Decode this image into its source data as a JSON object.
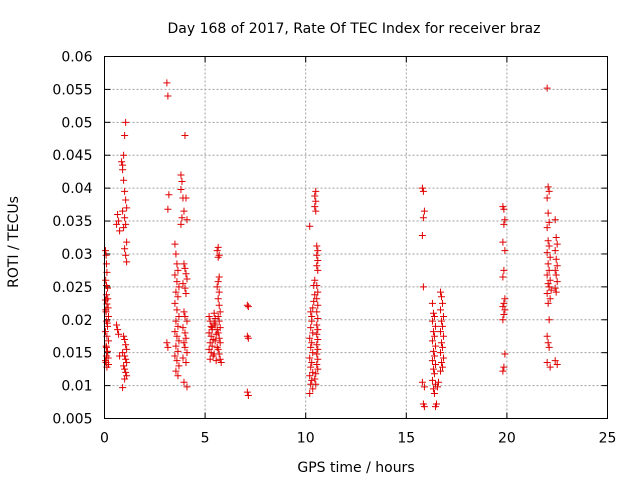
{
  "chart_data": {
    "type": "scatter",
    "title": "Day 168 of 2017, Rate Of TEC Index for receiver braz",
    "xlabel": "GPS time / hours",
    "ylabel": "ROTI / TECUs",
    "xlim": [
      0,
      25
    ],
    "ylim": [
      0.005,
      0.06
    ],
    "x_ticks": [
      0,
      5,
      10,
      15,
      20,
      25
    ],
    "x_tick_labels": [
      "0",
      "5",
      "10",
      "15",
      "20",
      "25"
    ],
    "y_ticks": [
      0.005,
      0.01,
      0.015,
      0.02,
      0.025,
      0.03,
      0.035,
      0.04,
      0.045,
      0.05,
      0.055,
      0.06
    ],
    "y_tick_labels": [
      "0.005",
      "0.01",
      "0.015",
      "0.02",
      "0.025",
      "0.03",
      "0.035",
      "0.04",
      "0.045",
      "0.05",
      "0.055",
      "0.06"
    ],
    "grid": true,
    "marker": "+",
    "color": "#e00000",
    "points": [
      [
        0.05,
        0.0305
      ],
      [
        0.08,
        0.0298
      ],
      [
        0.1,
        0.0285
      ],
      [
        0.12,
        0.0272
      ],
      [
        0.06,
        0.026
      ],
      [
        0.15,
        0.0248
      ],
      [
        0.1,
        0.0238
      ],
      [
        0.05,
        0.023
      ],
      [
        0.12,
        0.0224
      ],
      [
        0.18,
        0.0218
      ],
      [
        0.08,
        0.0212
      ],
      [
        0.2,
        0.0205
      ],
      [
        0.1,
        0.0198
      ],
      [
        0.15,
        0.019
      ],
      [
        0.05,
        0.0182
      ],
      [
        0.12,
        0.0175
      ],
      [
        0.2,
        0.0168
      ],
      [
        0.08,
        0.016
      ],
      [
        0.15,
        0.0152
      ],
      [
        0.1,
        0.0145
      ],
      [
        0.05,
        0.0138
      ],
      [
        0.2,
        0.0132
      ],
      [
        0.12,
        0.0128
      ],
      [
        0.08,
        0.0135
      ],
      [
        0.18,
        0.0142
      ],
      [
        0.1,
        0.0158
      ],
      [
        0.14,
        0.0195
      ],
      [
        0.06,
        0.0215
      ],
      [
        0.16,
        0.0232
      ],
      [
        0.1,
        0.0252
      ],
      [
        0.6,
        0.0345
      ],
      [
        0.65,
        0.036
      ],
      [
        0.7,
        0.035
      ],
      [
        0.75,
        0.0335
      ],
      [
        0.6,
        0.0192
      ],
      [
        0.65,
        0.0185
      ],
      [
        0.7,
        0.0178
      ],
      [
        0.75,
        0.0145
      ],
      [
        0.85,
        0.044
      ],
      [
        0.9,
        0.0435
      ],
      [
        0.95,
        0.045
      ],
      [
        1.0,
        0.048
      ],
      [
        1.05,
        0.05
      ],
      [
        0.9,
        0.0428
      ],
      [
        0.95,
        0.0412
      ],
      [
        1.0,
        0.0395
      ],
      [
        1.05,
        0.0382
      ],
      [
        1.1,
        0.037
      ],
      [
        0.9,
        0.0365
      ],
      [
        1.0,
        0.0355
      ],
      [
        1.05,
        0.0345
      ],
      [
        0.95,
        0.034
      ],
      [
        1.1,
        0.0318
      ],
      [
        1.0,
        0.0308
      ],
      [
        1.05,
        0.0298
      ],
      [
        1.1,
        0.0288
      ],
      [
        0.95,
        0.0175
      ],
      [
        1.0,
        0.017
      ],
      [
        1.05,
        0.0162
      ],
      [
        1.1,
        0.0155
      ],
      [
        0.9,
        0.015
      ],
      [
        1.0,
        0.0145
      ],
      [
        1.05,
        0.014
      ],
      [
        1.1,
        0.0135
      ],
      [
        0.95,
        0.013
      ],
      [
        1.0,
        0.0125
      ],
      [
        1.05,
        0.012
      ],
      [
        1.1,
        0.0115
      ],
      [
        0.9,
        0.0097
      ],
      [
        1.0,
        0.011
      ],
      [
        3.1,
        0.056
      ],
      [
        3.15,
        0.054
      ],
      [
        3.2,
        0.039
      ],
      [
        3.15,
        0.0368
      ],
      [
        3.1,
        0.0165
      ],
      [
        3.15,
        0.0158
      ],
      [
        3.5,
        0.0315
      ],
      [
        3.55,
        0.03
      ],
      [
        3.6,
        0.0285
      ],
      [
        3.65,
        0.0275
      ],
      [
        3.5,
        0.0268
      ],
      [
        3.6,
        0.0258
      ],
      [
        3.7,
        0.025
      ],
      [
        3.55,
        0.0242
      ],
      [
        3.65,
        0.0235
      ],
      [
        3.5,
        0.0225
      ],
      [
        3.6,
        0.0215
      ],
      [
        3.7,
        0.0205
      ],
      [
        3.55,
        0.0198
      ],
      [
        3.65,
        0.019
      ],
      [
        3.5,
        0.0182
      ],
      [
        3.6,
        0.0175
      ],
      [
        3.7,
        0.0168
      ],
      [
        3.55,
        0.016
      ],
      [
        3.65,
        0.0152
      ],
      [
        3.5,
        0.0145
      ],
      [
        3.6,
        0.0138
      ],
      [
        3.7,
        0.013
      ],
      [
        3.55,
        0.0122
      ],
      [
        3.65,
        0.0115
      ],
      [
        3.8,
        0.042
      ],
      [
        3.85,
        0.041
      ],
      [
        3.8,
        0.0398
      ],
      [
        3.9,
        0.0385
      ],
      [
        3.95,
        0.0365
      ],
      [
        3.85,
        0.0355
      ],
      [
        3.8,
        0.0345
      ],
      [
        4.0,
        0.048
      ],
      [
        4.05,
        0.0385
      ],
      [
        4.1,
        0.0352
      ],
      [
        3.95,
        0.0285
      ],
      [
        4.0,
        0.0278
      ],
      [
        4.05,
        0.027
      ],
      [
        4.1,
        0.0262
      ],
      [
        3.9,
        0.0255
      ],
      [
        4.0,
        0.0248
      ],
      [
        4.05,
        0.024
      ],
      [
        3.95,
        0.0212
      ],
      [
        4.0,
        0.0205
      ],
      [
        4.1,
        0.0198
      ],
      [
        3.9,
        0.0188
      ],
      [
        4.0,
        0.018
      ],
      [
        4.05,
        0.0172
      ],
      [
        3.95,
        0.0165
      ],
      [
        4.0,
        0.0158
      ],
      [
        4.1,
        0.015
      ],
      [
        3.9,
        0.0142
      ],
      [
        4.05,
        0.0135
      ],
      [
        3.95,
        0.0105
      ],
      [
        4.1,
        0.0098
      ],
      [
        5.2,
        0.0205
      ],
      [
        5.25,
        0.0198
      ],
      [
        5.3,
        0.019
      ],
      [
        5.35,
        0.0185
      ],
      [
        5.2,
        0.018
      ],
      [
        5.3,
        0.0175
      ],
      [
        5.4,
        0.017
      ],
      [
        5.25,
        0.0165
      ],
      [
        5.35,
        0.016
      ],
      [
        5.2,
        0.0155
      ],
      [
        5.3,
        0.015
      ],
      [
        5.4,
        0.0145
      ],
      [
        5.25,
        0.014
      ],
      [
        5.35,
        0.0188
      ],
      [
        5.45,
        0.0195
      ],
      [
        5.5,
        0.0202
      ],
      [
        5.45,
        0.021
      ],
      [
        5.55,
        0.0178
      ],
      [
        5.5,
        0.0168
      ],
      [
        5.6,
        0.0158
      ],
      [
        5.45,
        0.0148
      ],
      [
        5.55,
        0.0138
      ],
      [
        5.5,
        0.0192
      ],
      [
        5.6,
        0.0185
      ],
      [
        5.65,
        0.031
      ],
      [
        5.6,
        0.0305
      ],
      [
        5.7,
        0.0298
      ],
      [
        5.65,
        0.0295
      ],
      [
        5.7,
        0.0265
      ],
      [
        5.65,
        0.0258
      ],
      [
        5.6,
        0.025
      ],
      [
        5.7,
        0.0242
      ],
      [
        5.65,
        0.0232
      ],
      [
        5.7,
        0.0222
      ],
      [
        5.75,
        0.0212
      ],
      [
        5.65,
        0.0205
      ],
      [
        5.7,
        0.0198
      ],
      [
        5.75,
        0.0188
      ],
      [
        5.65,
        0.018
      ],
      [
        5.7,
        0.0172
      ],
      [
        5.75,
        0.0165
      ],
      [
        5.65,
        0.0155
      ],
      [
        5.7,
        0.0148
      ],
      [
        5.75,
        0.014
      ],
      [
        5.8,
        0.0135
      ],
      [
        7.1,
        0.0222
      ],
      [
        7.15,
        0.022
      ],
      [
        7.1,
        0.0175
      ],
      [
        7.15,
        0.0172
      ],
      [
        7.1,
        0.009
      ],
      [
        7.15,
        0.0085
      ],
      [
        10.2,
        0.0342
      ],
      [
        10.3,
        0.0198
      ],
      [
        10.25,
        0.0188
      ],
      [
        10.35,
        0.018
      ],
      [
        10.2,
        0.0172
      ],
      [
        10.3,
        0.0165
      ],
      [
        10.25,
        0.0158
      ],
      [
        10.35,
        0.015
      ],
      [
        10.2,
        0.0142
      ],
      [
        10.3,
        0.0135
      ],
      [
        10.25,
        0.0128
      ],
      [
        10.35,
        0.012
      ],
      [
        10.2,
        0.0115
      ],
      [
        10.3,
        0.0108
      ],
      [
        10.25,
        0.0102
      ],
      [
        10.35,
        0.0095
      ],
      [
        10.2,
        0.0088
      ],
      [
        10.3,
        0.0205
      ],
      [
        10.25,
        0.0212
      ],
      [
        10.35,
        0.0218
      ],
      [
        10.4,
        0.0228
      ],
      [
        10.45,
        0.0238
      ],
      [
        10.4,
        0.0252
      ],
      [
        10.45,
        0.026
      ],
      [
        10.5,
        0.0395
      ],
      [
        10.45,
        0.0388
      ],
      [
        10.5,
        0.038
      ],
      [
        10.45,
        0.0372
      ],
      [
        10.5,
        0.0365
      ],
      [
        10.55,
        0.0312
      ],
      [
        10.6,
        0.0305
      ],
      [
        10.55,
        0.0298
      ],
      [
        10.6,
        0.029
      ],
      [
        10.55,
        0.0282
      ],
      [
        10.6,
        0.0275
      ],
      [
        10.55,
        0.0252
      ],
      [
        10.6,
        0.0242
      ],
      [
        10.55,
        0.0232
      ],
      [
        10.6,
        0.0222
      ],
      [
        10.55,
        0.0212
      ],
      [
        10.6,
        0.0202
      ],
      [
        10.55,
        0.0192
      ],
      [
        10.6,
        0.0185
      ],
      [
        10.55,
        0.0178
      ],
      [
        10.6,
        0.017
      ],
      [
        10.55,
        0.0162
      ],
      [
        10.6,
        0.0155
      ],
      [
        10.55,
        0.0148
      ],
      [
        10.6,
        0.014
      ],
      [
        10.55,
        0.0132
      ],
      [
        10.6,
        0.0125
      ],
      [
        10.5,
        0.0118
      ],
      [
        10.45,
        0.011
      ],
      [
        10.5,
        0.0102
      ],
      [
        15.8,
        0.04
      ],
      [
        15.85,
        0.0395
      ],
      [
        15.9,
        0.0365
      ],
      [
        15.85,
        0.0355
      ],
      [
        15.8,
        0.0328
      ],
      [
        15.85,
        0.025
      ],
      [
        15.8,
        0.0105
      ],
      [
        15.9,
        0.0098
      ],
      [
        15.85,
        0.0072
      ],
      [
        15.9,
        0.0068
      ],
      [
        16.3,
        0.0225
      ],
      [
        16.35,
        0.021
      ],
      [
        16.4,
        0.0205
      ],
      [
        16.3,
        0.0198
      ],
      [
        16.45,
        0.019
      ],
      [
        16.35,
        0.0182
      ],
      [
        16.4,
        0.0175
      ],
      [
        16.3,
        0.0168
      ],
      [
        16.45,
        0.016
      ],
      [
        16.35,
        0.0152
      ],
      [
        16.4,
        0.0145
      ],
      [
        16.3,
        0.0138
      ],
      [
        16.45,
        0.0132
      ],
      [
        16.35,
        0.0125
      ],
      [
        16.4,
        0.0118
      ],
      [
        16.3,
        0.0108
      ],
      [
        16.45,
        0.0102
      ],
      [
        16.35,
        0.0095
      ],
      [
        16.4,
        0.0088
      ],
      [
        16.5,
        0.0072
      ],
      [
        16.45,
        0.0068
      ],
      [
        16.55,
        0.0098
      ],
      [
        16.6,
        0.0105
      ],
      [
        16.7,
        0.0242
      ],
      [
        16.75,
        0.0235
      ],
      [
        16.8,
        0.0225
      ],
      [
        16.7,
        0.0215
      ],
      [
        16.85,
        0.0205
      ],
      [
        16.75,
        0.0198
      ],
      [
        16.8,
        0.019
      ],
      [
        16.7,
        0.0182
      ],
      [
        16.85,
        0.0175
      ],
      [
        16.75,
        0.0165
      ],
      [
        16.8,
        0.0158
      ],
      [
        16.7,
        0.015
      ],
      [
        16.85,
        0.0142
      ],
      [
        16.75,
        0.0135
      ],
      [
        16.8,
        0.0128
      ],
      [
        16.7,
        0.0122
      ],
      [
        19.8,
        0.0372
      ],
      [
        19.85,
        0.0368
      ],
      [
        19.9,
        0.0352
      ],
      [
        19.85,
        0.0345
      ],
      [
        19.8,
        0.0318
      ],
      [
        19.9,
        0.0305
      ],
      [
        19.85,
        0.0275
      ],
      [
        19.8,
        0.0265
      ],
      [
        19.9,
        0.0232
      ],
      [
        19.85,
        0.0225
      ],
      [
        19.8,
        0.022
      ],
      [
        19.9,
        0.0215
      ],
      [
        19.85,
        0.0208
      ],
      [
        19.8,
        0.02
      ],
      [
        19.9,
        0.0148
      ],
      [
        19.85,
        0.0128
      ],
      [
        19.8,
        0.0122
      ],
      [
        22.0,
        0.0552
      ],
      [
        22.05,
        0.0402
      ],
      [
        22.1,
        0.0395
      ],
      [
        22.0,
        0.0385
      ],
      [
        22.05,
        0.0362
      ],
      [
        22.1,
        0.0348
      ],
      [
        22.0,
        0.034
      ],
      [
        22.05,
        0.032
      ],
      [
        22.1,
        0.0312
      ],
      [
        22.0,
        0.0302
      ],
      [
        22.15,
        0.0295
      ],
      [
        22.05,
        0.0285
      ],
      [
        22.1,
        0.0275
      ],
      [
        22.0,
        0.0268
      ],
      [
        22.15,
        0.026
      ],
      [
        22.05,
        0.0255
      ],
      [
        22.1,
        0.025
      ],
      [
        22.2,
        0.0245
      ],
      [
        22.0,
        0.024
      ],
      [
        22.15,
        0.0232
      ],
      [
        22.05,
        0.0225
      ],
      [
        22.1,
        0.02
      ],
      [
        22.0,
        0.0175
      ],
      [
        22.05,
        0.0165
      ],
      [
        22.1,
        0.0158
      ],
      [
        22.0,
        0.0135
      ],
      [
        22.15,
        0.0128
      ],
      [
        22.4,
        0.0352
      ],
      [
        22.45,
        0.0325
      ],
      [
        22.5,
        0.0315
      ],
      [
        22.4,
        0.0305
      ],
      [
        22.45,
        0.0292
      ],
      [
        22.5,
        0.0282
      ],
      [
        22.4,
        0.0275
      ],
      [
        22.45,
        0.0268
      ],
      [
        22.5,
        0.0258
      ],
      [
        22.4,
        0.0248
      ],
      [
        22.45,
        0.0242
      ],
      [
        22.4,
        0.0138
      ],
      [
        22.5,
        0.0132
      ]
    ]
  }
}
